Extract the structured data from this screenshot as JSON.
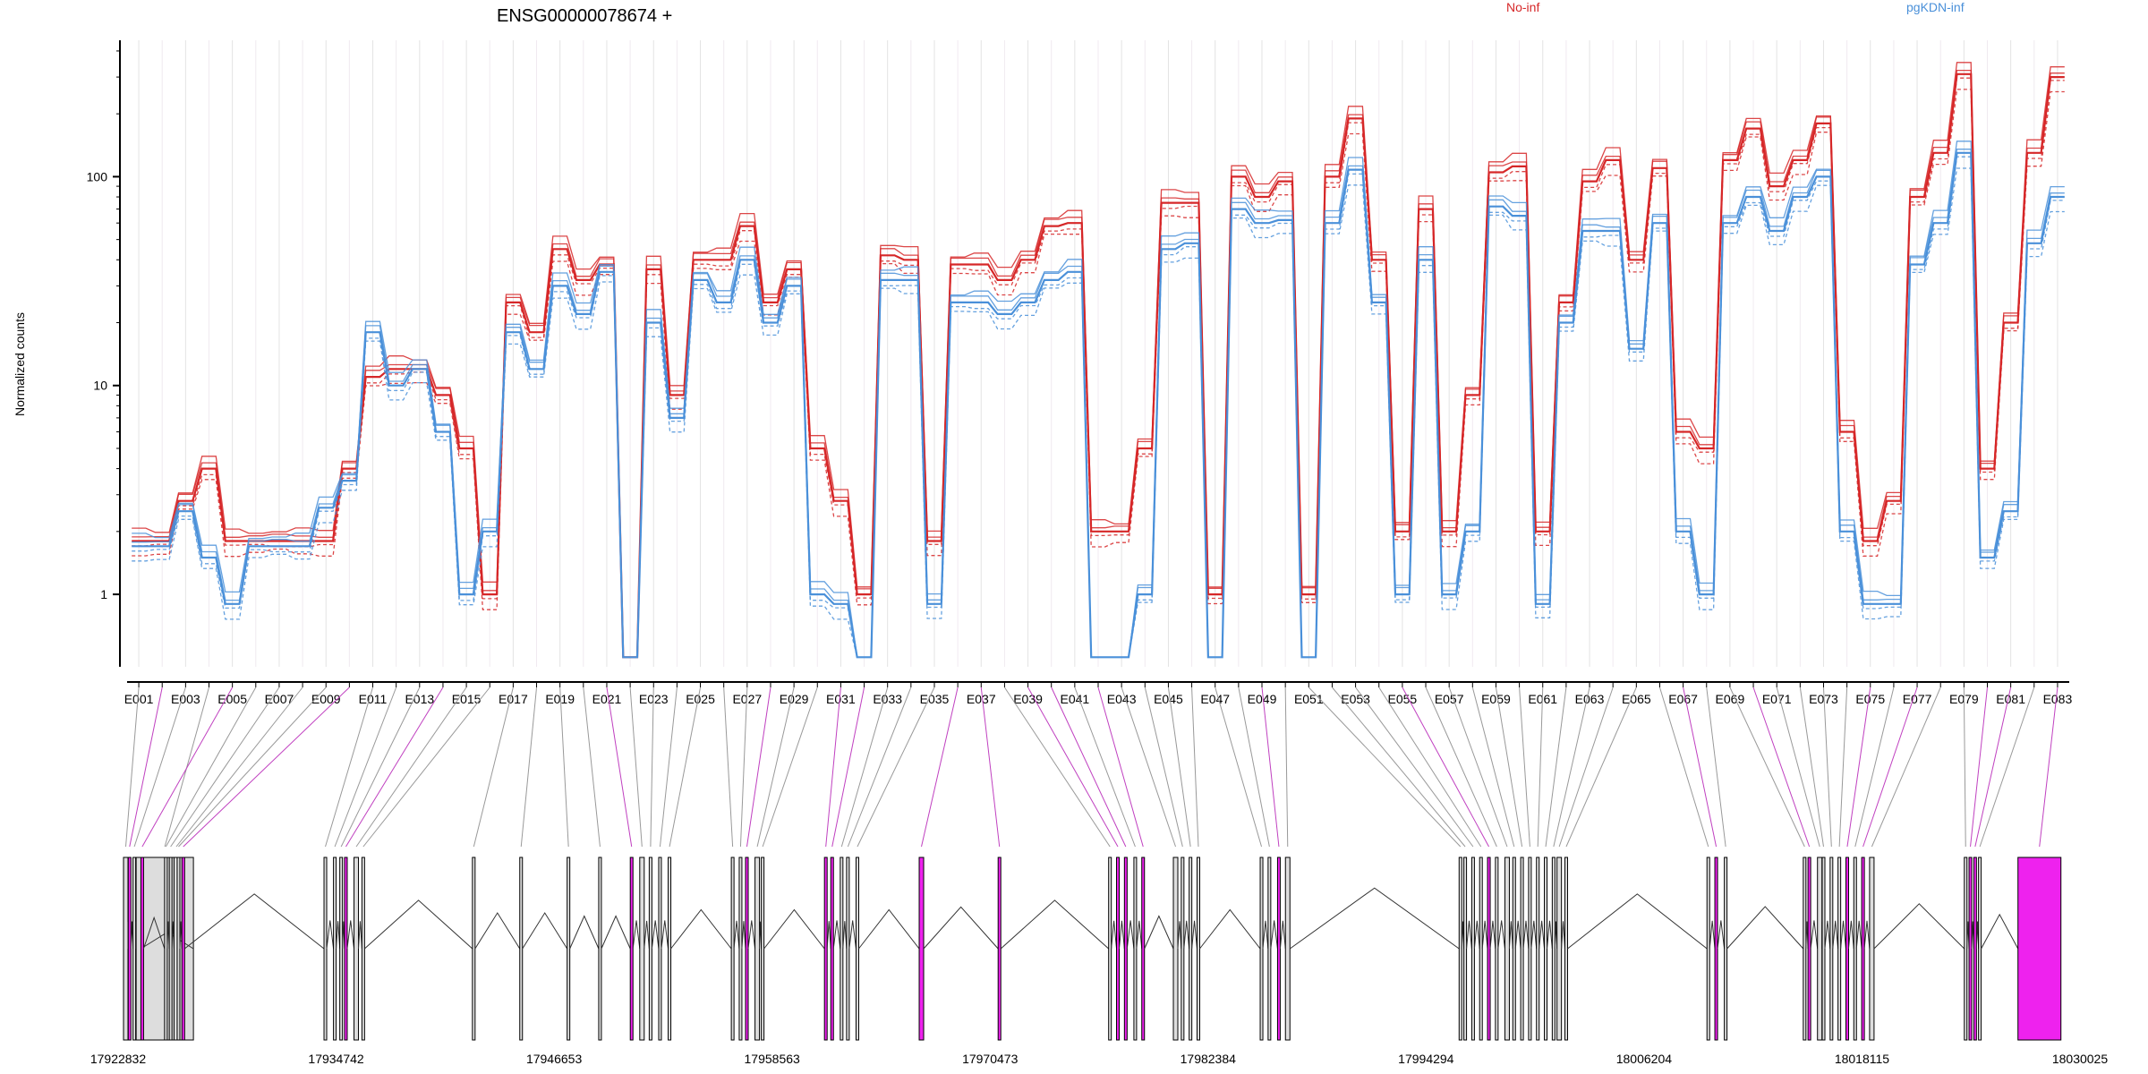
{
  "chart_data": {
    "type": "line",
    "title": "ENSG00000078674 +",
    "ylabel": "Normalized counts",
    "y_scale": "log",
    "ylim": [
      0.45,
      450
    ],
    "y_ticks": [
      1,
      10,
      100
    ],
    "y_tick_labels": [
      "1",
      "10",
      "100"
    ],
    "legend_position": "top-right",
    "exon_labels": [
      "E001",
      "E003",
      "E005",
      "E007",
      "E009",
      "E011",
      "E013",
      "E015",
      "E017",
      "E019",
      "E021",
      "E023",
      "E025",
      "E027",
      "E029",
      "E031",
      "E033",
      "E035",
      "E037",
      "E039",
      "E041",
      "E043",
      "E045",
      "E047",
      "E049",
      "E051",
      "E053",
      "E055",
      "E057",
      "E059",
      "E061",
      "E063",
      "E065",
      "E067",
      "E069",
      "E071",
      "E073",
      "E075",
      "E077",
      "E079",
      "E081",
      "E083"
    ],
    "x": [
      "E001",
      "E002",
      "E003",
      "E004",
      "E005",
      "E006",
      "E007",
      "E008",
      "E009",
      "E010",
      "E011",
      "E012",
      "E013",
      "E014",
      "E015",
      "E016",
      "E017",
      "E018",
      "E019",
      "E020",
      "E021",
      "E022",
      "E023",
      "E024",
      "E025",
      "E026",
      "E027",
      "E028",
      "E029",
      "E030",
      "E031",
      "E032",
      "E033",
      "E034",
      "E035",
      "E036",
      "E037",
      "E038",
      "E039",
      "E040",
      "E041",
      "E042",
      "E043",
      "E044",
      "E045",
      "E046",
      "E047",
      "E048",
      "E049",
      "E050",
      "E051",
      "E052",
      "E053",
      "E054",
      "E055",
      "E056",
      "E057",
      "E058",
      "E059",
      "E060",
      "E061",
      "E062",
      "E063",
      "E064",
      "E065",
      "E066",
      "E067",
      "E068",
      "E069",
      "E070",
      "E071",
      "E072",
      "E073",
      "E074",
      "E075",
      "E076",
      "E077",
      "E078",
      "E079",
      "E080",
      "E081",
      "E082",
      "E083"
    ],
    "series": [
      {
        "name": "No-inf",
        "color": "#d62728",
        "values": [
          1.8,
          1.8,
          2.8,
          4,
          1.8,
          1.8,
          1.8,
          1.8,
          1.8,
          4,
          11,
          12,
          12,
          9,
          5,
          1,
          25,
          18,
          45,
          32,
          38,
          0.5,
          36,
          9,
          40,
          40,
          58,
          25,
          36,
          5,
          2.8,
          1,
          42,
          40,
          1.8,
          38,
          38,
          32,
          40,
          58,
          60,
          2,
          2,
          5,
          75,
          75,
          1,
          100,
          80,
          95,
          1,
          100,
          190,
          40,
          2,
          70,
          2,
          9,
          105,
          112,
          2,
          25,
          95,
          120,
          40,
          110,
          6,
          5,
          120,
          170,
          90,
          120,
          180,
          6,
          1.8,
          2.8,
          80,
          130,
          310,
          4,
          20,
          130,
          300
        ]
      },
      {
        "name": "pgKDN-inf",
        "color": "#4a90d9",
        "values": [
          1.7,
          1.7,
          2.5,
          1.5,
          0.9,
          1.7,
          1.7,
          1.7,
          2.6,
          3.5,
          18,
          10,
          12,
          6,
          1,
          2,
          18,
          12,
          30,
          22,
          35,
          0.5,
          20,
          7,
          32,
          25,
          40,
          20,
          30,
          1,
          0.9,
          0.5,
          32,
          32,
          0.9,
          25,
          25,
          22,
          25,
          32,
          35,
          0.5,
          0.5,
          1,
          45,
          48,
          0.5,
          70,
          60,
          62,
          0.5,
          60,
          108,
          25,
          1,
          40,
          1,
          2,
          72,
          65,
          0.9,
          20,
          55,
          55,
          15,
          60,
          2,
          1,
          60,
          80,
          55,
          80,
          100,
          2,
          0.9,
          0.9,
          38,
          60,
          130,
          1.5,
          2.5,
          48,
          80
        ]
      }
    ]
  },
  "gene_model": {
    "start_coord": 17922832,
    "end_coord": 18030025,
    "axis_tick_labels": [
      "17922832",
      "17934742",
      "17946653",
      "17958563",
      "17970473",
      "17982384",
      "17994294",
      "18006204",
      "18018115",
      "18030025"
    ]
  }
}
